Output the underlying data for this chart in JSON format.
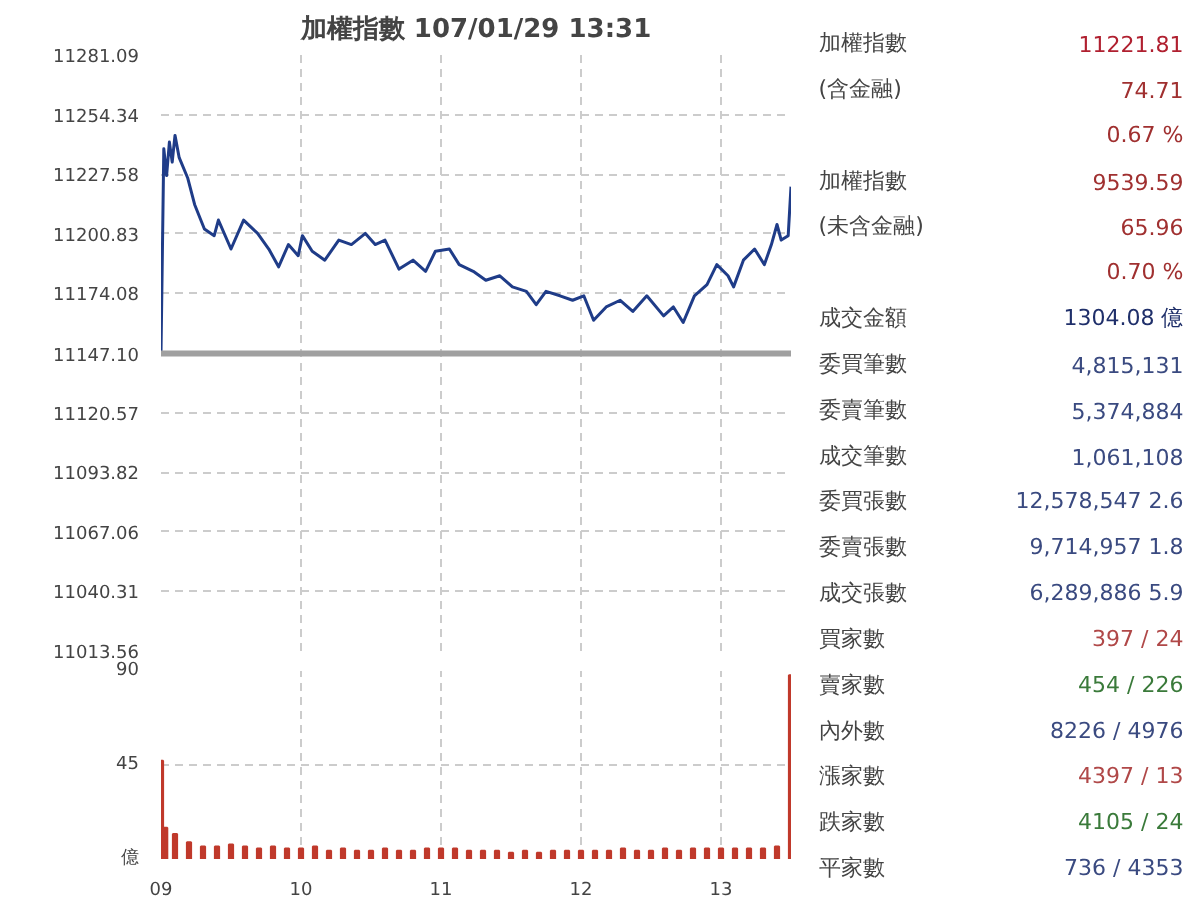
{
  "chart_data": [
    {
      "type": "line",
      "title": "加權指數 107/01/29 13:31",
      "grid": true,
      "tick_labels": "y",
      "xlim": [
        9,
        13.5
      ],
      "xticks": [
        10,
        11,
        12,
        13
      ],
      "ylim": [
        11013.56,
        11281.09
      ],
      "yticks": [
        11281.09,
        11254.34,
        11227.58,
        11200.83,
        11174.08,
        {
          "value": 11147.1,
          "label": "11147.10"
        },
        11120.57,
        11093.82,
        11067.06,
        11040.31,
        11013.56
      ],
      "ref_lines": [
        {
          "axis": "y",
          "value": 11147.1,
          "color": "#a0a0a0"
        }
      ],
      "series": [
        {
          "color": "#1f3c88",
          "x": [
            9.0,
            9.02,
            9.04,
            9.06,
            9.08,
            9.1,
            9.13,
            9.19,
            9.24,
            9.31,
            9.38,
            9.41,
            9.5,
            9.59,
            9.69,
            9.77,
            9.84,
            9.91,
            9.98,
            10.01,
            10.08,
            10.17,
            10.27,
            10.36,
            10.46,
            10.53,
            10.6,
            10.7,
            10.8,
            10.89,
            10.96,
            11.06,
            11.13,
            11.23,
            11.32,
            11.42,
            11.51,
            11.61,
            11.68,
            11.75,
            11.85,
            11.94,
            12.02,
            12.09,
            12.18,
            12.28,
            12.37,
            12.47,
            12.59,
            12.66,
            12.73,
            12.81,
            12.9,
            12.97,
            13.05,
            13.09,
            13.16,
            13.24,
            13.31,
            13.36,
            13.4,
            13.43,
            13.48,
            13.5
          ],
          "values": [
            11147,
            11239,
            11227,
            11242,
            11233,
            11245,
            11235,
            11226,
            11214,
            11203,
            11200,
            11207,
            11194,
            11207,
            11201,
            11194,
            11186,
            11196,
            11191,
            11200,
            11193,
            11189,
            11198,
            11196,
            11201,
            11196,
            11198,
            11185,
            11189,
            11184,
            11193,
            11194,
            11187,
            11184,
            11180,
            11182,
            11177,
            11175,
            11169,
            11175,
            11173,
            11171,
            11173,
            11162,
            11168,
            11171,
            11166,
            11173,
            11164,
            11168,
            11161,
            11173,
            11178,
            11187,
            11182,
            11177,
            11189,
            11194,
            11187,
            11196,
            11205,
            11198,
            11200,
            11222
          ]
        }
      ]
    },
    {
      "type": "bar",
      "grid": true,
      "xlim": [
        9,
        13.5
      ],
      "xticks": [
        {
          "value": 9,
          "label": "09"
        },
        10,
        11,
        12,
        13
      ],
      "ylim": [
        0,
        90
      ],
      "yticks": [
        {
          "value": 0,
          "label": "億"
        },
        45,
        90
      ],
      "series": [
        {
          "color": "#c0392b",
          "x": [
            9.0,
            9.03,
            9.1,
            9.2,
            9.3,
            9.4,
            9.5,
            9.6,
            9.7,
            9.8,
            9.9,
            10.0,
            10.1,
            10.2,
            10.3,
            10.4,
            10.5,
            10.6,
            10.7,
            10.8,
            10.9,
            11.0,
            11.1,
            11.2,
            11.3,
            11.4,
            11.5,
            11.6,
            11.7,
            11.8,
            11.9,
            12.0,
            12.1,
            12.2,
            12.3,
            12.4,
            12.5,
            12.6,
            12.7,
            12.8,
            12.9,
            13.0,
            13.1,
            13.2,
            13.3,
            13.4,
            13.5
          ],
          "values": [
            47,
            15,
            12,
            8,
            6,
            6,
            7,
            6,
            5,
            6,
            5,
            5,
            6,
            4,
            5,
            4,
            4,
            5,
            4,
            4,
            5,
            5,
            5,
            4,
            4,
            4,
            3,
            4,
            3,
            4,
            4,
            4,
            4,
            4,
            5,
            4,
            4,
            5,
            4,
            5,
            5,
            5,
            5,
            5,
            5,
            6,
            88
          ]
        }
      ]
    },
    {
      "type": "other",
      "categories": [
        "加權指數",
        "(含金融)",
        null,
        "加權指數",
        "(未含金融)",
        null,
        "成交金額",
        "委買筆數",
        "委賣筆數",
        "成交筆數",
        "委買張數",
        "委賣張數",
        "成交張數",
        "買家數",
        "賣家數",
        "內外數",
        "漲家數",
        "跌家數",
        "平家數"
      ],
      "value_labels": [
        "11221.81",
        "74.71",
        "0.67 %",
        "9539.59",
        "65.96",
        "0.70 %",
        "1304.08 億",
        "4,815,131",
        "5,374,884",
        "1,061,108",
        "12,578,547 2.6",
        "9,714,957 1.8",
        "6,289,886 5.9",
        "397 / 24",
        "454 / 226",
        "8226 / 4976",
        "4397 / 13",
        "4105 / 24",
        "736 / 4353"
      ],
      "colors": [
        "#b02030",
        "#a03030",
        "#a03030",
        "#a03030",
        "#a03030",
        "#a03030",
        "#1f2f6a",
        "#3a4a80",
        "#3a4a80",
        "#3a4a80",
        "#3a4a80",
        "#3a4a80",
        "#3a4a80",
        "#b04848",
        "#3a7a3a",
        "#3a4a80",
        "#b04848",
        "#3a7a3a",
        "#3a4a80"
      ]
    }
  ]
}
